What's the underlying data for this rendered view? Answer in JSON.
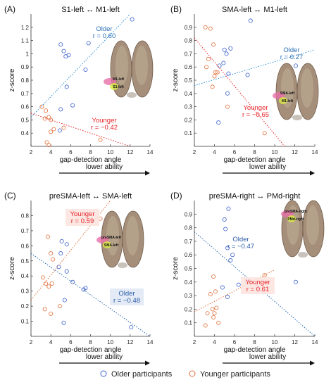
{
  "colors": {
    "older": "#3a5fcd",
    "younger": "#e0703a",
    "older_text": "#2a6fb8",
    "younger_text": "#e8242a",
    "older_line_b": "#2b8fd6",
    "younger_line_b": "#e8242a",
    "axis": "#333333",
    "brain": "#a68f7a"
  },
  "legend": {
    "older_label": "Older participants",
    "younger_label": "Younger participants"
  },
  "chart_data": [
    {
      "type": "scatter",
      "panel_letter": "(A)",
      "title": "S1-left ↔ M1-left",
      "xlabel": "gap-detection angle",
      "ylabel": "z-score",
      "arrow_label": "lower ability",
      "xlim": [
        2,
        14
      ],
      "ylim": [
        0.3,
        1.3
      ],
      "xticks": [
        "2",
        "4",
        "6",
        "8",
        "10",
        "12",
        "14"
      ],
      "yticks": [
        "0.4",
        "0.5",
        "0.6",
        "0.7",
        "0.8",
        "0.9",
        "1",
        "1.1",
        "1.2"
      ],
      "ytick_values": [
        0.4,
        0.5,
        0.6,
        0.7,
        0.8,
        0.9,
        1.0,
        1.1,
        1.2
      ],
      "brain_labels": [
        "M1-left",
        "S1-left"
      ],
      "series": [
        {
          "name": "Older",
          "r_text": "r = 0.60",
          "x": [
            5.0,
            5.3,
            5.8,
            5.5,
            5.6,
            5.0,
            4.9,
            7.5,
            7.8,
            12.2,
            6.2
          ],
          "y": [
            1.07,
            1.02,
            0.99,
            0.98,
            0.75,
            0.58,
            0.42,
            0.88,
            1.08,
            1.26,
            0.61
          ],
          "fit": [
            [
              2,
              0.52
            ],
            [
              12,
              1.3
            ]
          ]
        },
        {
          "name": "Younger",
          "r_text": "r = −0.42",
          "x": [
            3.1,
            3.4,
            3.5,
            3.8,
            4.0,
            4.0,
            4.3,
            3.6,
            3.8,
            5.3,
            9.0
          ],
          "y": [
            0.6,
            0.51,
            0.57,
            0.52,
            0.5,
            0.41,
            0.43,
            0.33,
            0.31,
            0.44,
            0.35
          ],
          "fit": [
            [
              2,
              0.55
            ],
            [
              12,
              0.3
            ]
          ]
        }
      ]
    },
    {
      "type": "scatter",
      "panel_letter": "(B)",
      "title": "SMA-left ↔ M1-left",
      "xlabel": "gap-detection angle",
      "ylabel": "z-score",
      "arrow_label": "lower ability",
      "xlim": [
        2,
        14
      ],
      "ylim": [
        0.0,
        1.0
      ],
      "xticks": [
        "2",
        "4",
        "6",
        "8",
        "10",
        "12",
        "14"
      ],
      "yticks": [
        "0.1",
        "0.2",
        "0.3",
        "0.4",
        "0.5",
        "0.6",
        "0.7",
        "0.8",
        "0.9"
      ],
      "ytick_values": [
        0.1,
        0.2,
        0.3,
        0.4,
        0.5,
        0.6,
        0.7,
        0.8,
        0.9
      ],
      "brain_labels": [
        "SMA-left",
        "M1-left"
      ],
      "series": [
        {
          "name": "Older",
          "r_text": "r = 0.27",
          "x": [
            7.6,
            5.0,
            5.2,
            5.6,
            4.9,
            4.5,
            7.3,
            5.3,
            4.4,
            12.1,
            5.4
          ],
          "y": [
            0.95,
            0.73,
            0.7,
            0.74,
            0.63,
            0.61,
            0.54,
            0.4,
            0.18,
            0.61,
            0.55
          ],
          "fit": [
            [
              2,
              0.46
            ],
            [
              14,
              0.73
            ]
          ]
        },
        {
          "name": "Younger",
          "r_text": "r = −0.65",
          "x": [
            3.1,
            3.6,
            3.9,
            3.4,
            3.2,
            4.1,
            4.0,
            4.3,
            3.8,
            5.3,
            9.0
          ],
          "y": [
            0.9,
            0.89,
            0.77,
            0.66,
            0.6,
            0.56,
            0.53,
            0.56,
            0.45,
            0.3,
            0.1
          ],
          "fit": [
            [
              2,
              0.82
            ],
            [
              11,
              0.0
            ]
          ]
        }
      ]
    },
    {
      "type": "scatter",
      "panel_letter": "(C)",
      "title": "preSMA-left ↔ SMA-left",
      "xlabel": "gap-detection angle",
      "ylabel": "z-score",
      "arrow_label": "lower ability",
      "xlim": [
        2,
        14
      ],
      "ylim": [
        0.0,
        0.9
      ],
      "xticks": [
        "2",
        "4",
        "6",
        "8",
        "10",
        "12",
        "14"
      ],
      "yticks": [
        "0.1",
        "0.2",
        "0.3",
        "0.4",
        "0.5",
        "0.6",
        "0.7",
        "0.8"
      ],
      "ytick_values": [
        0.1,
        0.2,
        0.3,
        0.4,
        0.5,
        0.6,
        0.7,
        0.8
      ],
      "brain_labels": [
        "preSMA-left",
        "SMA-left"
      ],
      "series": [
        {
          "name": "Older",
          "r_text": "r = −0.48",
          "x": [
            5.1,
            5.6,
            5.0,
            5.6,
            6.2,
            7.3,
            7.5,
            5.4,
            5.3,
            12.1,
            4.8
          ],
          "y": [
            0.63,
            0.61,
            0.55,
            0.43,
            0.36,
            0.31,
            0.32,
            0.24,
            0.09,
            0.06,
            0.46
          ],
          "fit": [
            [
              2,
              0.55
            ],
            [
              14,
              0.0
            ]
          ]
        },
        {
          "name": "Younger",
          "r_text": "r = 0.59",
          "x": [
            3.7,
            4.0,
            4.2,
            3.2,
            3.5,
            3.8,
            4.1,
            4.0,
            3.4,
            4.9,
            9.0
          ],
          "y": [
            0.66,
            0.55,
            0.51,
            0.39,
            0.35,
            0.33,
            0.35,
            0.15,
            0.18,
            0.2,
            0.78
          ],
          "fit": [
            [
              2,
              0.24
            ],
            [
              10,
              0.9
            ]
          ]
        }
      ]
    },
    {
      "type": "scatter",
      "panel_letter": "(D)",
      "title": "preSMA-right ↔ PMd-right",
      "xlabel": "gap-detection angle",
      "ylabel": "z-score",
      "arrow_label": "lower ability",
      "xlim": [
        2,
        14
      ],
      "ylim": [
        0.0,
        1.0
      ],
      "xticks": [
        "2",
        "4",
        "6",
        "8",
        "10",
        "12",
        "14"
      ],
      "yticks": [
        "0.1",
        "0.2",
        "0.3",
        "0.4",
        "0.5",
        "0.6",
        "0.7",
        "0.8",
        "0.9"
      ],
      "ytick_values": [
        0.1,
        0.2,
        0.3,
        0.4,
        0.5,
        0.6,
        0.7,
        0.8,
        0.9
      ],
      "brain_labels": [
        "preSMA-right",
        "PMd-right"
      ],
      "series": [
        {
          "name": "Older",
          "r_text": "r = −0.47",
          "x": [
            5.4,
            5.0,
            5.1,
            5.3,
            5.6,
            5.8,
            6.4,
            7.3,
            5.3,
            12.1,
            4.8
          ],
          "y": [
            0.94,
            0.86,
            0.79,
            0.65,
            0.56,
            0.6,
            0.38,
            0.4,
            0.29,
            0.4,
            0.36
          ],
          "fit": [
            [
              2,
              0.77
            ],
            [
              14,
              0.0
            ]
          ]
        },
        {
          "name": "Younger",
          "r_text": "r = 0.61",
          "x": [
            3.9,
            4.1,
            3.6,
            3.8,
            4.0,
            4.2,
            3.3,
            3.9,
            4.4,
            3.1,
            9.0
          ],
          "y": [
            0.44,
            0.33,
            0.31,
            0.2,
            0.17,
            0.21,
            0.17,
            0.14,
            0.1,
            0.08,
            0.45
          ],
          "fit": [
            [
              2,
              0.18
            ],
            [
              10,
              0.49
            ]
          ]
        }
      ]
    }
  ]
}
